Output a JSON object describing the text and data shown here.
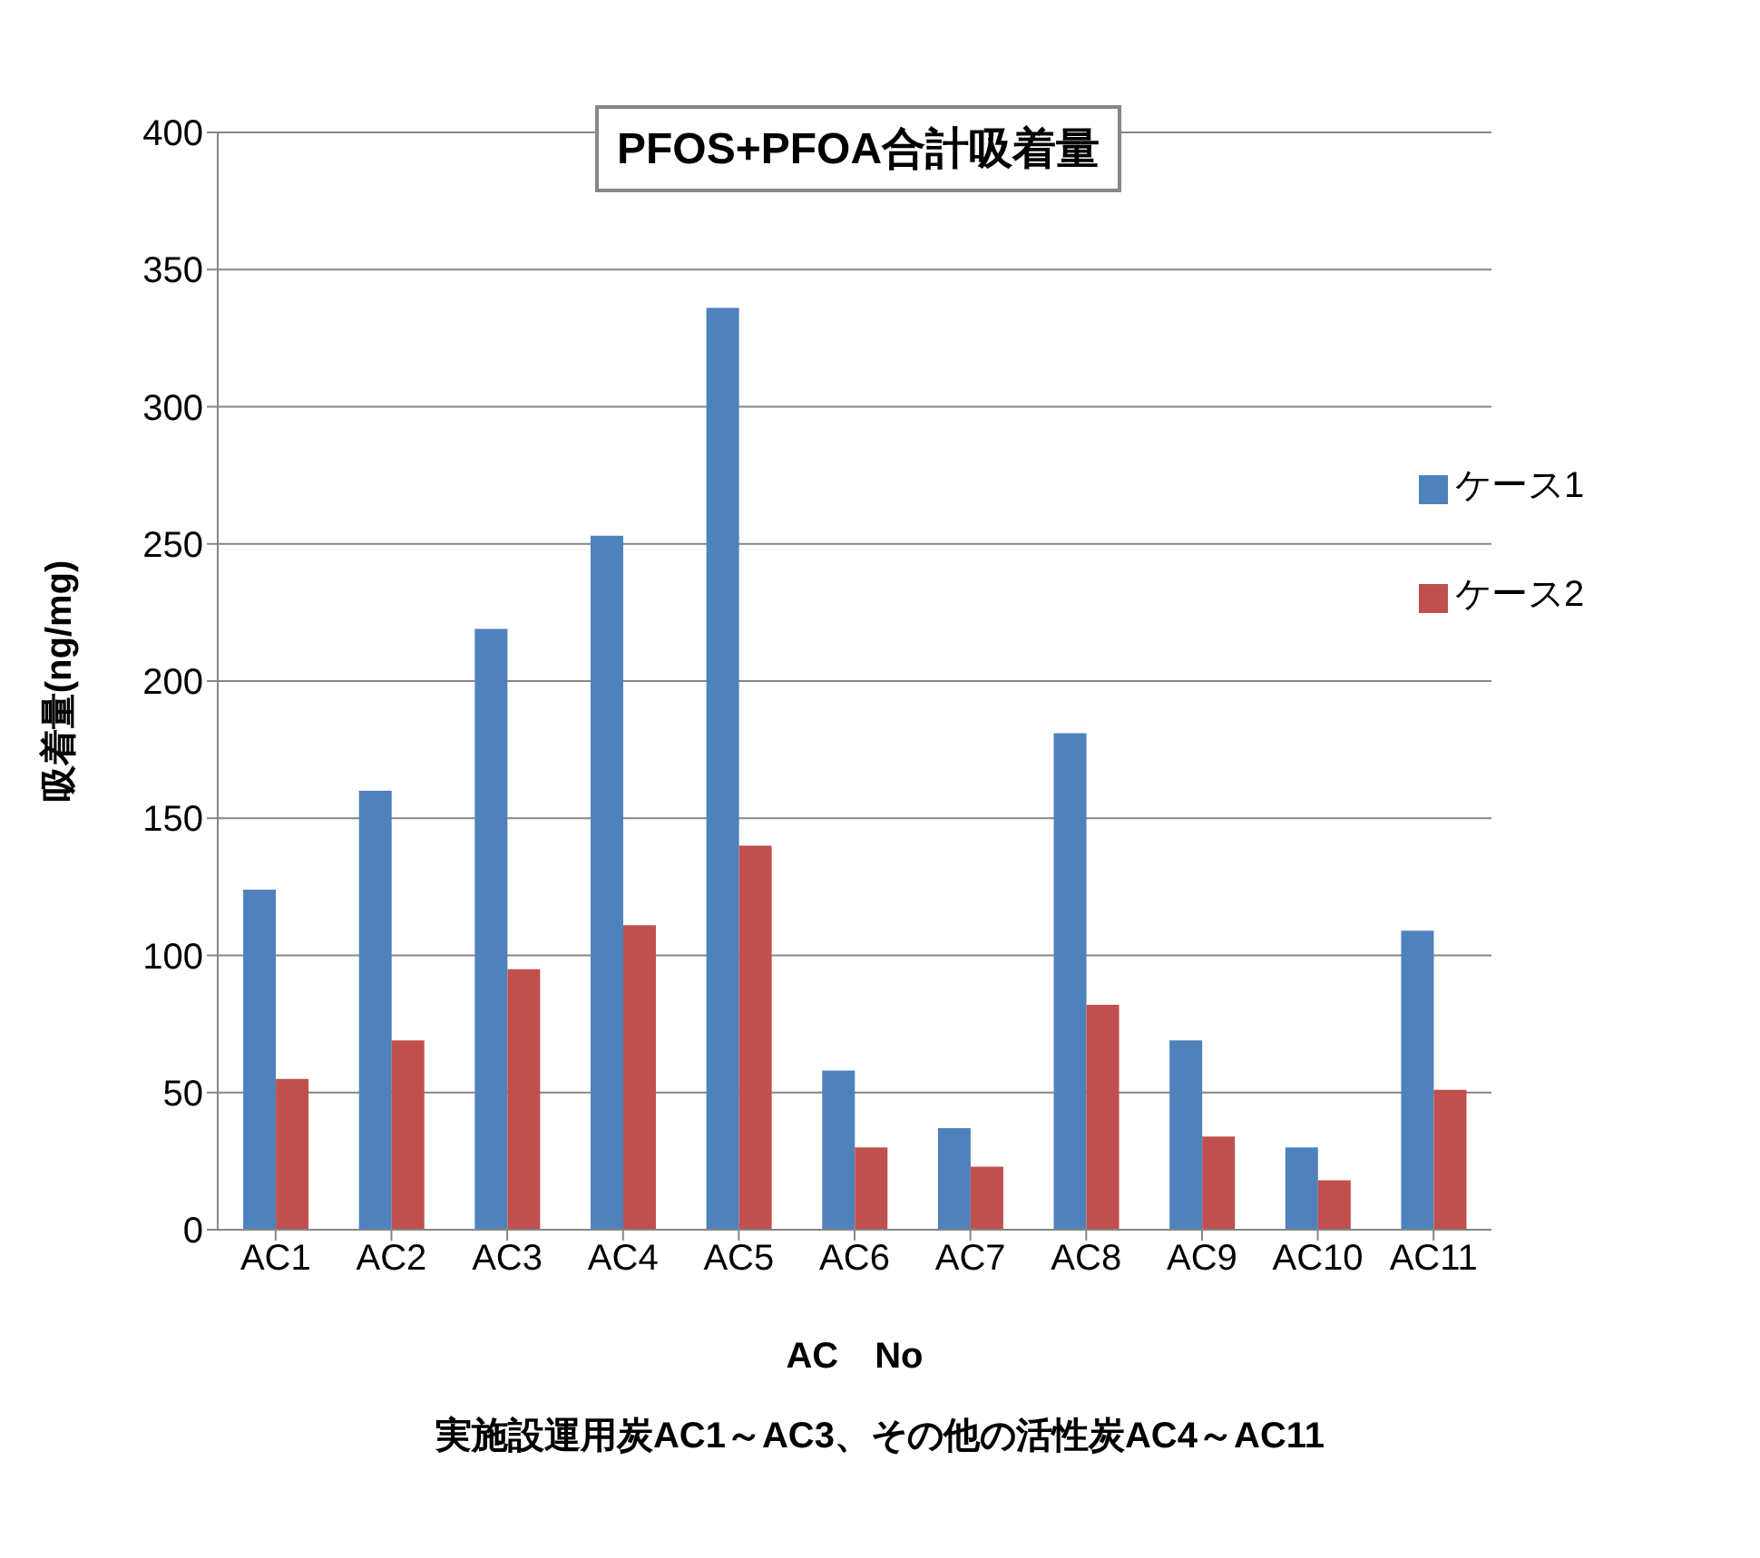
{
  "chart_data": {
    "type": "bar",
    "title": "PFOS+PFOA合計吸着量",
    "xlabel": "AC　No",
    "ylabel": "吸着量(ng/mg)",
    "annotations": [
      "実施設運用炭AC1～AC3、その他の活性炭AC4～AC11"
    ],
    "categories": [
      "AC1",
      "AC2",
      "AC3",
      "AC4",
      "AC5",
      "AC6",
      "AC7",
      "AC8",
      "AC9",
      "AC10",
      "AC11"
    ],
    "series": [
      {
        "name": "ケース1",
        "color": "#4f81bd",
        "values": [
          124,
          160,
          219,
          253,
          336,
          58,
          37,
          181,
          69,
          30,
          109
        ]
      },
      {
        "name": "ケース2",
        "color": "#c0504d",
        "values": [
          55,
          69,
          95,
          111,
          140,
          30,
          23,
          82,
          34,
          18,
          51
        ]
      }
    ],
    "ylim": [
      0,
      400
    ],
    "yticks": [
      0,
      50,
      100,
      150,
      200,
      250,
      300,
      350,
      400
    ],
    "grid": "y",
    "legend": "right"
  }
}
